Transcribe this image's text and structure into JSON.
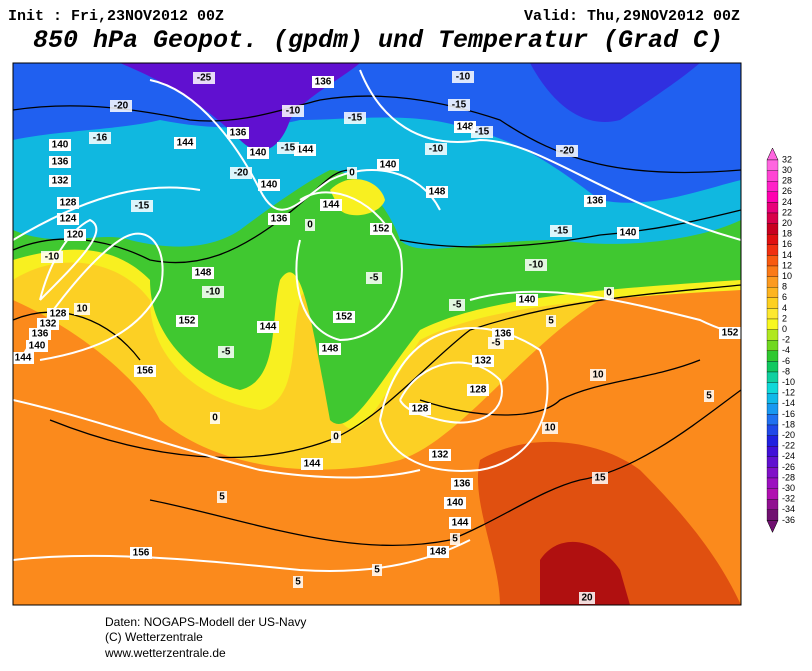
{
  "header": {
    "init": "Init : Fri,23NOV2012 00Z",
    "valid": "Valid: Thu,29NOV2012 00Z",
    "title": "850 hPa Geopot. (gpdm) und Temperatur (Grad C)"
  },
  "map": {
    "labels": [
      "136",
      "136",
      "144",
      "140",
      "144",
      "140",
      "148",
      "148",
      "140",
      "136",
      "144",
      "152",
      "140",
      "136",
      "132",
      "128",
      "124",
      "120",
      "148",
      "152",
      "144",
      "152",
      "148",
      "156",
      "144",
      "132",
      "128",
      "128",
      "132",
      "136",
      "140",
      "144",
      "148",
      "156",
      "136",
      "140",
      "136",
      "140",
      "152",
      "128",
      "132",
      "136",
      "140",
      "144",
      "-25",
      "-20",
      "-16",
      "-15",
      "-10",
      "-10",
      "-15",
      "-20",
      "-15",
      "-10",
      "-15",
      "-15",
      "-10",
      "-20",
      "-15",
      "-10",
      "-5",
      "-5",
      "-10",
      "-5",
      "0",
      "0",
      "0",
      "0",
      "0",
      "5",
      "5",
      "5",
      "5",
      "5",
      "10",
      "10",
      "10",
      "15",
      "20",
      "5",
      "-5"
    ]
  },
  "colorbar": {
    "ticks": [
      32,
      30,
      28,
      26,
      24,
      22,
      20,
      18,
      16,
      14,
      12,
      10,
      8,
      6,
      4,
      2,
      0,
      -2,
      -4,
      -6,
      -8,
      -10,
      -12,
      -14,
      -16,
      -18,
      -20,
      -22,
      -24,
      -26,
      -28,
      -30,
      -32,
      -34,
      -36
    ],
    "colors": [
      "#ff66e0",
      "#ff44d4",
      "#ff22c8",
      "#ff00b0",
      "#e8007a",
      "#d8004a",
      "#c80020",
      "#e01010",
      "#f03010",
      "#f85a10",
      "#fb7a18",
      "#fc9a20",
      "#fdb420",
      "#fdd020",
      "#fde830",
      "#f8f820",
      "#b0e820",
      "#70d820",
      "#30c830",
      "#10c860",
      "#10d0a0",
      "#10d8d8",
      "#10b8e8",
      "#1898f0",
      "#2070f0",
      "#2048e8",
      "#2020e0",
      "#4010d8",
      "#6010d0",
      "#8010c8",
      "#9c10c0",
      "#b010b0",
      "#901090",
      "#701070"
    ]
  },
  "footer": {
    "line1": "Daten: NOGAPS-Modell der US-Navy",
    "line2": "(C) Wetterzentrale",
    "line3": "www.wetterzentrale.de"
  }
}
